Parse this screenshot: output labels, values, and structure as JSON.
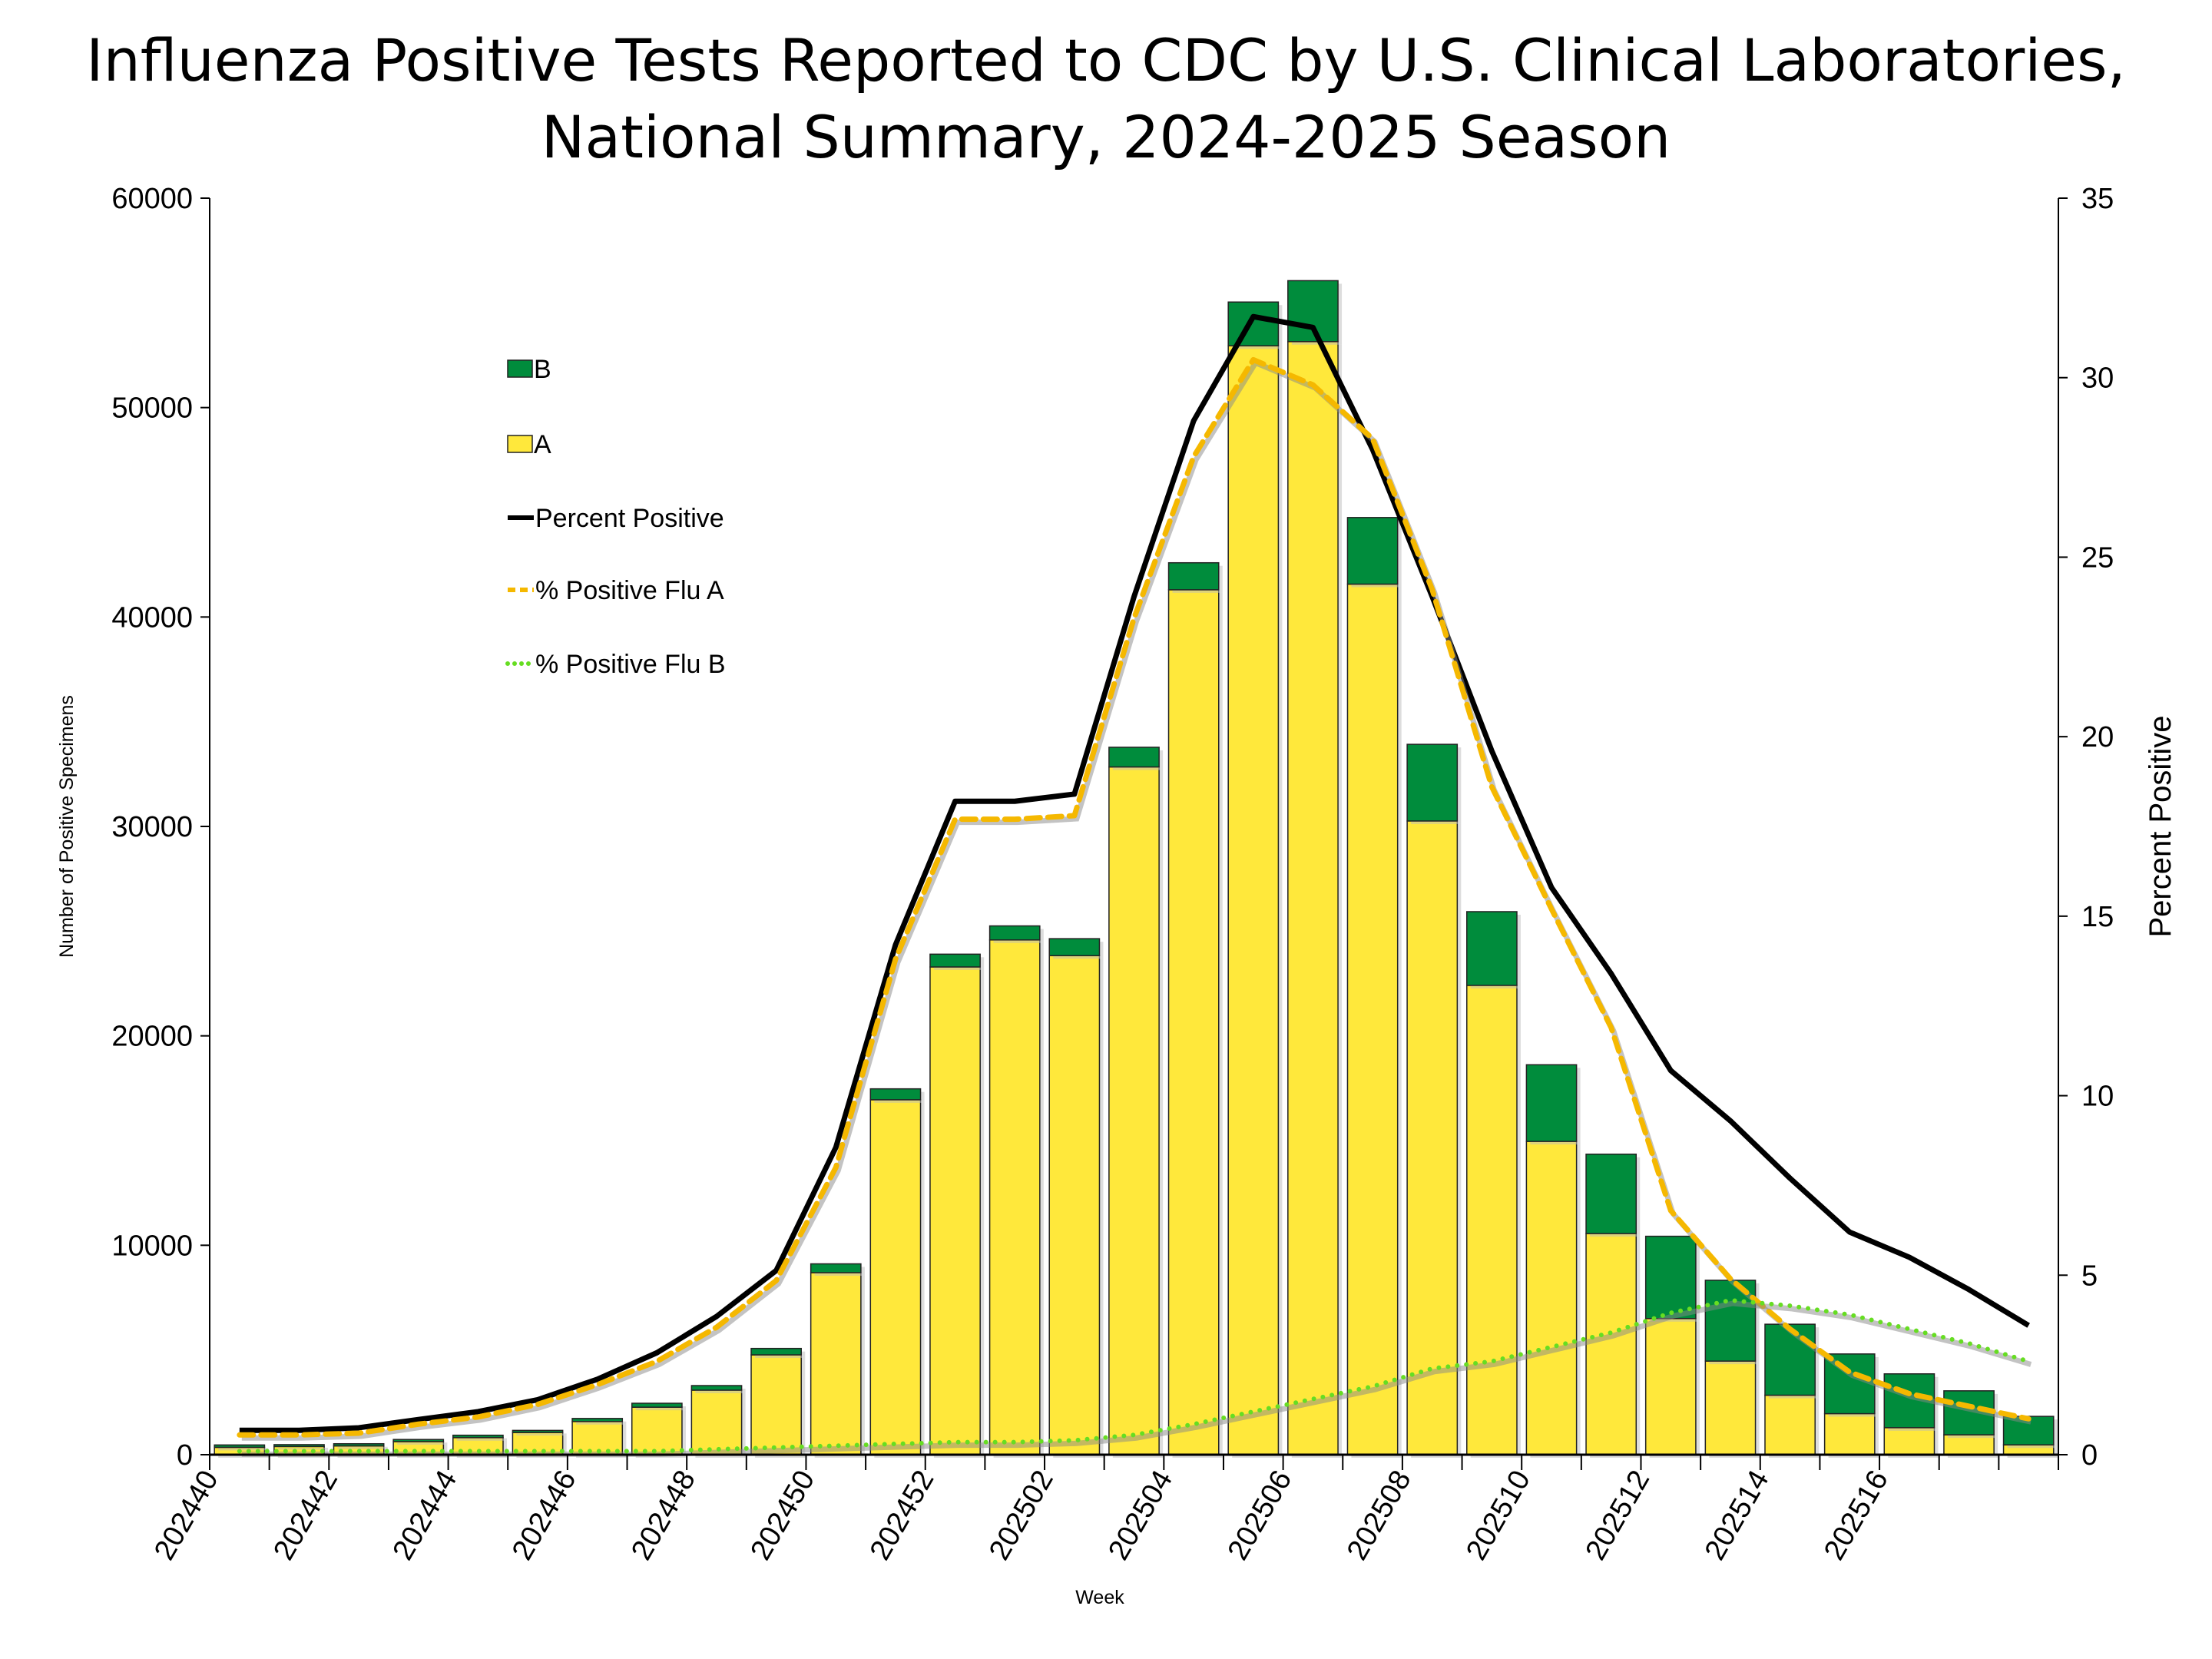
{
  "chart_data": {
    "type": "bar",
    "title_lines": [
      "Influenza Positive Tests Reported to CDC by U.S. Clinical Laboratories,",
      "National Summary, 2024-2025 Season"
    ],
    "xlabel": "Week",
    "ylabel": "Number of Positive Specimens",
    "y2label": "Percent Positive",
    "ylim": [
      0,
      60000
    ],
    "y2lim": [
      0,
      35
    ],
    "yticks": [
      "0",
      "10000",
      "20000",
      "30000",
      "40000",
      "50000",
      "60000"
    ],
    "y2ticks": [
      "0",
      "5",
      "10",
      "15",
      "20",
      "25",
      "30",
      "35"
    ],
    "grid": false,
    "legend_position": "upper-left",
    "categories": [
      "202440",
      "202441",
      "202442",
      "202443",
      "202444",
      "202445",
      "202446",
      "202447",
      "202448",
      "202449",
      "202450",
      "202451",
      "202452",
      "202501",
      "202502",
      "202503",
      "202504",
      "202505",
      "202506",
      "202507",
      "202508",
      "202509",
      "202510",
      "202511",
      "202512",
      "202513",
      "202514",
      "202515",
      "202516",
      "202517",
      "202518"
    ],
    "xtick_labels": [
      "202440",
      "202442",
      "202444",
      "202446",
      "202448",
      "202450",
      "202452",
      "202502",
      "202504",
      "202506",
      "202508",
      "202510",
      "202512",
      "202514",
      "202516"
    ],
    "stacked_series": [
      {
        "name": "A",
        "color": "#FFE83B",
        "values": [
          350,
          390,
          420,
          625,
          814,
          1060,
          1584,
          2267,
          3081,
          4767,
          8692,
          16948,
          23290,
          24580,
          23830,
          32840,
          41300,
          52950,
          53150,
          41570,
          30260,
          22410,
          14960,
          10560,
          6500,
          4470,
          2840,
          1960,
          1290,
          950,
          470
        ]
      },
      {
        "name": "B",
        "color": "#008C3C",
        "values": [
          115,
          90,
          103,
          102,
          116,
          100,
          146,
          189,
          219,
          306,
          421,
          522,
          610,
          670,
          810,
          940,
          1290,
          2090,
          2910,
          3180,
          3660,
          3520,
          3660,
          3790,
          3930,
          3860,
          3390,
          2850,
          2570,
          2100,
          1360
        ]
      }
    ],
    "line_series": [
      {
        "name": "Percent Positive",
        "color": "#000000",
        "style": "solid",
        "values": [
          0.68,
          0.68,
          0.75,
          0.98,
          1.2,
          1.53,
          2.1,
          2.84,
          3.85,
          5.13,
          8.56,
          14.2,
          18.2,
          18.2,
          18.4,
          23.9,
          28.8,
          31.7,
          31.4,
          28.0,
          23.9,
          19.6,
          15.8,
          13.4,
          10.7,
          9.3,
          7.7,
          6.2,
          5.5,
          4.6,
          3.6
        ]
      },
      {
        "name": "% Positive Flu A",
        "color": "#F5B800",
        "style": "dashed",
        "values": [
          0.55,
          0.55,
          0.6,
          0.85,
          1.05,
          1.4,
          1.95,
          2.6,
          3.55,
          4.85,
          8.0,
          13.8,
          17.7,
          17.7,
          17.8,
          23.3,
          27.8,
          30.5,
          29.8,
          28.3,
          24.1,
          18.6,
          15.2,
          11.9,
          6.8,
          4.9,
          3.5,
          2.3,
          1.7,
          1.35,
          1.0
        ]
      },
      {
        "name": "% Positive Flu B",
        "color": "#66DD22",
        "style": "dotted",
        "values": [
          0.1,
          0.1,
          0.1,
          0.1,
          0.1,
          0.1,
          0.1,
          0.1,
          0.15,
          0.2,
          0.25,
          0.3,
          0.35,
          0.35,
          0.4,
          0.55,
          0.85,
          1.2,
          1.55,
          1.9,
          2.4,
          2.6,
          3.0,
          3.4,
          3.95,
          4.3,
          4.15,
          3.9,
          3.5,
          3.1,
          2.6
        ]
      }
    ]
  }
}
